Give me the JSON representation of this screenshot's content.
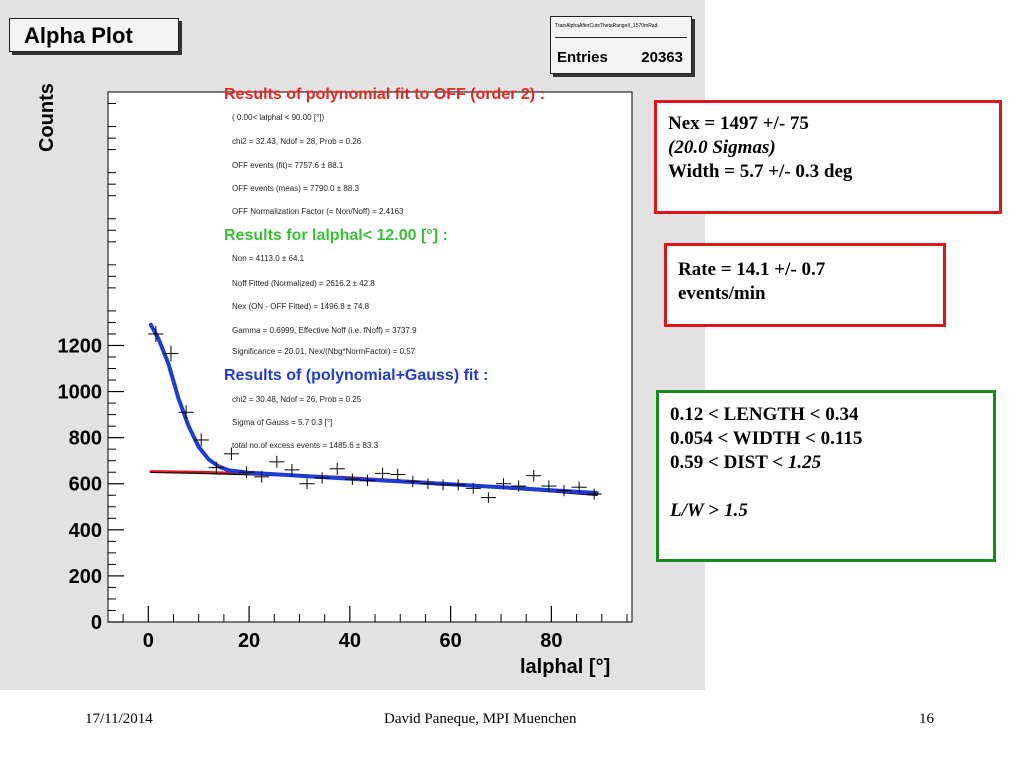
{
  "plot": {
    "title": "Alpha Plot",
    "stats": {
      "name": "TrainAlphaAfterCutsThetaRangeII_1570mRad",
      "entries_label": "Entries",
      "entries_value": "20363"
    },
    "xlabel": "lalphal  [°]",
    "ylabel": "Counts",
    "fit_text": {
      "poly_head": "Results of polynomial fit to OFF (order  2) :",
      "poly_lines": [
        "(  0.00< lalphal < 90.00 [°])",
        "chi2 =   32.43,  Ndof =  28,  Prob =  0.26",
        "OFF events (fit)=  7757.6 ±     88.1",
        "OFF events (meas) =  7790.0 ±     88.3",
        "OFF Normalization Factor (= Non/Noff) = 2.4163"
      ],
      "signal_head": "Results for lalphal<  12.00 [°] :",
      "signal_lines": [
        "Non =  4113.0 ±    64.1",
        "Noff Fitted (Normalized)  =  2616.2 ±    42.8",
        "Nex (ON - OFF Fitted) =  1496.8 ±    74.8",
        "Gamma = 0.6999,   Effective Noff (i.e. fNoff) = 3737.9",
        "Significance =  20.01,   Nex/(Nbg*NormFactor) =   0.57"
      ],
      "gauss_head": "Results of (polynomial+Gauss) fit  :",
      "gauss_lines": [
        "chi2 =   30.48,  Ndof =  26,  Prob =  0.25",
        "Sigma of Gauss     =     5.7     0.3  [°]",
        "total no.of excess events =   1485.6 ±     83.3"
      ]
    },
    "colors": {
      "poly_head": "#e8251f",
      "signal_head": "#39c039",
      "gauss_head": "#1f3bd6",
      "on_curve": "#1f3bd6",
      "off_curve": "#e0141b"
    }
  },
  "chart_data": {
    "type": "scatter",
    "xlabel": "lalphal  [°]",
    "ylabel": "Counts",
    "xlim": [
      -8,
      96
    ],
    "ylim": [
      0,
      2300
    ],
    "x_ticks": [
      0,
      20,
      40,
      60,
      80
    ],
    "y_ticks": [
      0,
      200,
      400,
      600,
      800,
      1000,
      1200
    ],
    "series": [
      {
        "style": "points-errorbars",
        "x": [
          1.5,
          4.5,
          7.5,
          10.5,
          13.5,
          16.5,
          19.5,
          22.5,
          25.5,
          28.5,
          31.5,
          34.5,
          37.5,
          40.5,
          43.5,
          46.5,
          49.5,
          52.5,
          55.5,
          58.5,
          61.5,
          64.5,
          67.5,
          70.5,
          73.5,
          76.5,
          79.5,
          82.5,
          85.5,
          88.5
        ],
        "y": [
          1250,
          1165,
          910,
          790,
          670,
          730,
          650,
          630,
          695,
          660,
          600,
          625,
          665,
          620,
          615,
          645,
          640,
          610,
          600,
          595,
          595,
          580,
          540,
          600,
          590,
          635,
          590,
          570,
          585,
          555
        ],
        "yerr": [
          35,
          34,
          30,
          28,
          26,
          27,
          25,
          25,
          26,
          26,
          24,
          25,
          26,
          25,
          25,
          25,
          25,
          25,
          24,
          24,
          24,
          24,
          23,
          24,
          24,
          25,
          24,
          24,
          24,
          24
        ]
      },
      {
        "style": "line",
        "x": [
          0.5,
          2,
          4,
          6,
          8,
          10,
          12,
          14,
          16,
          20,
          30,
          40,
          50,
          60,
          70,
          80,
          89
        ],
        "y": [
          1290,
          1230,
          1120,
          970,
          850,
          760,
          705,
          675,
          658,
          648,
          635,
          622,
          610,
          598,
          585,
          572,
          560
        ]
      },
      {
        "style": "line",
        "x": [
          0.5,
          10,
          20,
          30,
          40,
          50,
          60,
          70,
          80,
          89
        ],
        "y": [
          652,
          648,
          642,
          635,
          625,
          612,
          598,
          583,
          567,
          552
        ]
      },
      {
        "style": "line",
        "x": [
          0.5,
          10,
          20,
          30,
          40,
          50,
          60,
          70,
          80,
          89
        ],
        "y": [
          655,
          652,
          646,
          638,
          628,
          615,
          601,
          585,
          569,
          554
        ]
      }
    ]
  },
  "boxes": {
    "nex": {
      "line1": "Nex = 1497 +/-  75",
      "line2": "(20.0 Sigmas)",
      "line3": "Width = 5.7 +/- 0.3 deg"
    },
    "rate": {
      "line1": "Rate = 14.1 +/- 0.7",
      "line2": "events/min"
    },
    "cuts": {
      "line1": "0.12 < LENGTH < 0.34",
      "line2": "0.054 < WIDTH < 0.115",
      "line3a": "0.59 < DIST < ",
      "line3b": "1.25",
      "line4a": "L/W",
      "line4b": " > ",
      "line4c": "1.5"
    }
  },
  "footer": {
    "date": "17/11/2014",
    "author": "David Paneque, MPI Muenchen",
    "page": "16"
  }
}
